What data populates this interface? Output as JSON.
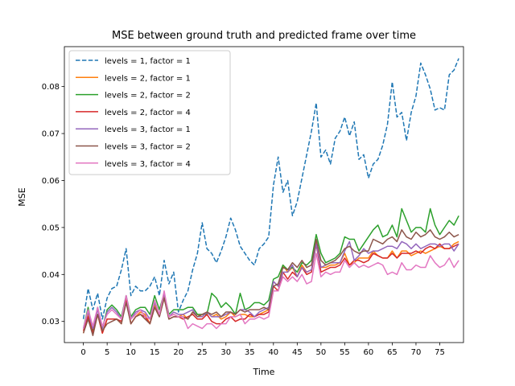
{
  "chart_data": {
    "type": "line",
    "title": "MSE between ground truth and predicted frame over time",
    "xlabel": "Time",
    "ylabel": "MSE",
    "xlim": [
      -4,
      80
    ],
    "ylim": [
      0.0255,
      0.0885
    ],
    "x_ticks": [
      "0",
      "5",
      "10",
      "15",
      "20",
      "25",
      "30",
      "35",
      "40",
      "45",
      "50",
      "55",
      "60",
      "65",
      "70",
      "75"
    ],
    "y_ticks": [
      "0.03",
      "0.04",
      "0.05",
      "0.06",
      "0.07",
      "0.08"
    ],
    "grid": false,
    "legend_position": "upper left",
    "x": [
      0,
      1,
      2,
      3,
      4,
      5,
      6,
      7,
      8,
      9,
      10,
      11,
      12,
      13,
      14,
      15,
      16,
      17,
      18,
      19,
      20,
      21,
      22,
      23,
      24,
      25,
      26,
      27,
      28,
      29,
      30,
      31,
      32,
      33,
      34,
      35,
      36,
      37,
      38,
      39,
      40,
      41,
      42,
      43,
      44,
      45,
      46,
      47,
      48,
      49,
      50,
      51,
      52,
      53,
      54,
      55,
      56,
      57,
      58,
      59,
      60,
      61,
      62,
      63,
      64,
      65,
      66,
      67,
      68,
      69,
      70,
      71,
      72,
      73,
      74,
      75,
      76,
      77,
      78,
      79
    ],
    "series": [
      {
        "name": "levels = 1, factor = 1",
        "color": "#1f77b4",
        "dashed": true,
        "values": [
          0.0305,
          0.037,
          0.0325,
          0.036,
          0.0305,
          0.035,
          0.037,
          0.0375,
          0.041,
          0.0455,
          0.0355,
          0.0375,
          0.0365,
          0.0365,
          0.0375,
          0.0395,
          0.0355,
          0.043,
          0.038,
          0.0405,
          0.032,
          0.0345,
          0.0365,
          0.041,
          0.0445,
          0.051,
          0.0455,
          0.0445,
          0.0425,
          0.045,
          0.048,
          0.052,
          0.0495,
          0.046,
          0.0445,
          0.043,
          0.042,
          0.0455,
          0.0465,
          0.048,
          0.059,
          0.065,
          0.0575,
          0.06,
          0.0525,
          0.0555,
          0.0605,
          0.0655,
          0.0705,
          0.0765,
          0.065,
          0.0665,
          0.0635,
          0.069,
          0.0705,
          0.0735,
          0.0695,
          0.0725,
          0.0645,
          0.0655,
          0.0605,
          0.0635,
          0.0645,
          0.0675,
          0.072,
          0.081,
          0.0735,
          0.0745,
          0.0685,
          0.0745,
          0.078,
          0.085,
          0.0825,
          0.0795,
          0.075,
          0.0755,
          0.075,
          0.0825,
          0.0835,
          0.086
        ]
      },
      {
        "name": "levels = 2, factor = 1",
        "color": "#ff7f0e",
        "dashed": false,
        "values": [
          0.0275,
          0.0315,
          0.0275,
          0.0315,
          0.0275,
          0.0305,
          0.0305,
          0.0305,
          0.0295,
          0.035,
          0.0295,
          0.031,
          0.032,
          0.0315,
          0.0295,
          0.0335,
          0.0315,
          0.0355,
          0.031,
          0.0315,
          0.031,
          0.0315,
          0.0305,
          0.032,
          0.0315,
          0.031,
          0.032,
          0.031,
          0.0315,
          0.0305,
          0.031,
          0.032,
          0.031,
          0.0315,
          0.0315,
          0.031,
          0.031,
          0.0315,
          0.032,
          0.0325,
          0.0385,
          0.0375,
          0.042,
          0.0405,
          0.0415,
          0.0395,
          0.042,
          0.0405,
          0.041,
          0.047,
          0.0415,
          0.0415,
          0.042,
          0.042,
          0.0425,
          0.0445,
          0.042,
          0.0425,
          0.0435,
          0.0435,
          0.0435,
          0.045,
          0.044,
          0.0435,
          0.0435,
          0.045,
          0.0435,
          0.045,
          0.045,
          0.044,
          0.0445,
          0.045,
          0.0445,
          0.045,
          0.0455,
          0.046,
          0.0455,
          0.0455,
          0.0465,
          0.047
        ]
      },
      {
        "name": "levels = 2, factor = 2",
        "color": "#2ca02c",
        "dashed": false,
        "values": [
          0.0285,
          0.033,
          0.028,
          0.033,
          0.0285,
          0.0325,
          0.0335,
          0.0325,
          0.031,
          0.0355,
          0.031,
          0.0325,
          0.033,
          0.033,
          0.0315,
          0.0355,
          0.0325,
          0.036,
          0.0315,
          0.0325,
          0.0325,
          0.0325,
          0.033,
          0.033,
          0.0315,
          0.0315,
          0.0315,
          0.036,
          0.035,
          0.033,
          0.034,
          0.033,
          0.0315,
          0.036,
          0.0325,
          0.033,
          0.034,
          0.034,
          0.0335,
          0.0345,
          0.039,
          0.0395,
          0.042,
          0.041,
          0.0415,
          0.0405,
          0.0425,
          0.042,
          0.043,
          0.0485,
          0.0445,
          0.0425,
          0.043,
          0.0435,
          0.0445,
          0.048,
          0.0475,
          0.0475,
          0.045,
          0.0465,
          0.048,
          0.0495,
          0.0505,
          0.048,
          0.0485,
          0.0505,
          0.048,
          0.054,
          0.0515,
          0.049,
          0.05,
          0.05,
          0.049,
          0.054,
          0.0505,
          0.0485,
          0.05,
          0.0515,
          0.0505,
          0.0525
        ]
      },
      {
        "name": "levels = 2, factor = 4",
        "color": "#d62728",
        "dashed": false,
        "values": [
          0.028,
          0.031,
          0.0275,
          0.0315,
          0.0275,
          0.0305,
          0.0305,
          0.0305,
          0.03,
          0.0345,
          0.0295,
          0.031,
          0.0315,
          0.031,
          0.0295,
          0.033,
          0.031,
          0.035,
          0.0305,
          0.031,
          0.031,
          0.0305,
          0.031,
          0.0315,
          0.0305,
          0.0305,
          0.0315,
          0.03,
          0.0295,
          0.0295,
          0.0305,
          0.031,
          0.03,
          0.0305,
          0.0305,
          0.0315,
          0.031,
          0.0315,
          0.0315,
          0.032,
          0.0375,
          0.0365,
          0.0405,
          0.039,
          0.0405,
          0.0395,
          0.0415,
          0.04,
          0.0405,
          0.0465,
          0.0405,
          0.041,
          0.0415,
          0.0415,
          0.042,
          0.0435,
          0.042,
          0.043,
          0.043,
          0.0425,
          0.043,
          0.0445,
          0.044,
          0.0435,
          0.0435,
          0.0445,
          0.0435,
          0.0445,
          0.0445,
          0.0445,
          0.045,
          0.0445,
          0.0455,
          0.046,
          0.0455,
          0.0465,
          0.0455,
          0.0455,
          0.046,
          0.0465
        ]
      },
      {
        "name": "levels = 3, factor = 1",
        "color": "#9467bd",
        "dashed": false,
        "values": [
          0.0285,
          0.032,
          0.0285,
          0.0325,
          0.0285,
          0.032,
          0.033,
          0.032,
          0.0305,
          0.0355,
          0.0305,
          0.032,
          0.0325,
          0.032,
          0.0305,
          0.034,
          0.0315,
          0.036,
          0.031,
          0.032,
          0.0315,
          0.0315,
          0.032,
          0.0325,
          0.031,
          0.031,
          0.032,
          0.031,
          0.031,
          0.031,
          0.0315,
          0.032,
          0.0315,
          0.0325,
          0.0325,
          0.032,
          0.031,
          0.032,
          0.0325,
          0.033,
          0.0385,
          0.0375,
          0.0405,
          0.0405,
          0.042,
          0.0395,
          0.0415,
          0.0405,
          0.041,
          0.0465,
          0.0415,
          0.042,
          0.0425,
          0.0425,
          0.0425,
          0.045,
          0.047,
          0.043,
          0.044,
          0.0455,
          0.0445,
          0.045,
          0.045,
          0.0455,
          0.046,
          0.046,
          0.0455,
          0.047,
          0.0465,
          0.0455,
          0.0465,
          0.0455,
          0.046,
          0.0465,
          0.0465,
          0.046,
          0.0465,
          0.0465,
          0.045,
          0.0465
        ]
      },
      {
        "name": "levels = 3, factor = 2",
        "color": "#8c564b",
        "dashed": false,
        "values": [
          0.0275,
          0.0305,
          0.027,
          0.0315,
          0.028,
          0.0295,
          0.03,
          0.0305,
          0.0295,
          0.034,
          0.0295,
          0.031,
          0.0315,
          0.0305,
          0.0295,
          0.033,
          0.031,
          0.035,
          0.0305,
          0.031,
          0.031,
          0.031,
          0.0305,
          0.032,
          0.031,
          0.0315,
          0.032,
          0.0315,
          0.032,
          0.031,
          0.032,
          0.032,
          0.0315,
          0.0325,
          0.032,
          0.0325,
          0.0325,
          0.0325,
          0.033,
          0.0325,
          0.0375,
          0.038,
          0.0415,
          0.041,
          0.0425,
          0.0415,
          0.043,
          0.0415,
          0.042,
          0.0475,
          0.043,
          0.042,
          0.0425,
          0.043,
          0.044,
          0.0455,
          0.046,
          0.045,
          0.0445,
          0.045,
          0.045,
          0.0475,
          0.047,
          0.0465,
          0.0475,
          0.048,
          0.047,
          0.0495,
          0.048,
          0.0475,
          0.049,
          0.048,
          0.0485,
          0.0495,
          0.048,
          0.0475,
          0.048,
          0.049,
          0.048,
          0.0485
        ]
      },
      {
        "name": "levels = 3, factor = 4",
        "color": "#e377c2",
        "dashed": false,
        "values": [
          0.0285,
          0.0325,
          0.029,
          0.033,
          0.029,
          0.0315,
          0.0325,
          0.0315,
          0.0305,
          0.0355,
          0.0305,
          0.0315,
          0.0325,
          0.031,
          0.0305,
          0.0345,
          0.0315,
          0.0365,
          0.031,
          0.0315,
          0.031,
          0.031,
          0.0285,
          0.0295,
          0.029,
          0.0285,
          0.0295,
          0.0295,
          0.0285,
          0.0295,
          0.0295,
          0.031,
          0.031,
          0.0315,
          0.0295,
          0.0305,
          0.0305,
          0.031,
          0.0305,
          0.031,
          0.0365,
          0.0365,
          0.0395,
          0.0385,
          0.0395,
          0.0385,
          0.04,
          0.038,
          0.0385,
          0.0445,
          0.0395,
          0.0405,
          0.04,
          0.0405,
          0.0405,
          0.043,
          0.0415,
          0.0425,
          0.0415,
          0.042,
          0.0415,
          0.042,
          0.0425,
          0.042,
          0.04,
          0.0405,
          0.04,
          0.0425,
          0.041,
          0.041,
          0.042,
          0.0415,
          0.0415,
          0.044,
          0.0425,
          0.0415,
          0.042,
          0.0435,
          0.0415,
          0.043
        ]
      }
    ]
  }
}
